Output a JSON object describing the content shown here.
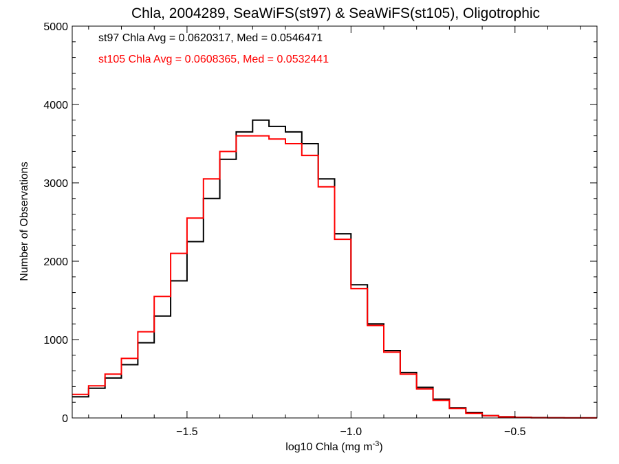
{
  "chart_data": {
    "type": "line",
    "style": "step-histogram",
    "title": "Chla, 2004289, SeaWiFS(st97) & SeaWiFS(st105), Oligotrophic",
    "xlabel": "log10 Chla (mg m",
    "xlabel_sup": "-3",
    "xlabel_end": ")",
    "ylabel": "Number of Observations",
    "xlim": [
      -1.85,
      -0.25
    ],
    "ylim": [
      0,
      5000
    ],
    "xticks": [
      -1.5,
      -1.0,
      -0.5
    ],
    "xtick_labels": [
      "−1.5",
      "−1.0",
      "−0.5"
    ],
    "yticks": [
      0,
      1000,
      2000,
      3000,
      4000,
      5000
    ],
    "ytick_labels": [
      "0",
      "1000",
      "2000",
      "3000",
      "4000",
      "5000"
    ],
    "grid": false,
    "annotations": [
      {
        "text": "st97 Chla Avg = 0.0620317, Med = 0.0546471",
        "color": "#000000"
      },
      {
        "text": "st105 Chla Avg = 0.0608365, Med = 0.0532441",
        "color": "#ff0000"
      }
    ],
    "series": [
      {
        "color": "#000000",
        "x": [
          -1.85,
          -1.8,
          -1.75,
          -1.7,
          -1.65,
          -1.6,
          -1.55,
          -1.5,
          -1.45,
          -1.4,
          -1.35,
          -1.3,
          -1.25,
          -1.2,
          -1.15,
          -1.1,
          -1.05,
          -1.0,
          -0.95,
          -0.9,
          -0.85,
          -0.8,
          -0.75,
          -0.7,
          -0.65,
          -0.6,
          -0.55,
          -0.5,
          -0.45,
          -0.4,
          -0.35,
          -0.3,
          -0.25
        ],
        "values": [
          270,
          380,
          510,
          680,
          960,
          1300,
          1750,
          2250,
          2800,
          3300,
          3650,
          3800,
          3720,
          3650,
          3500,
          3050,
          2350,
          1700,
          1200,
          860,
          580,
          390,
          240,
          130,
          70,
          30,
          15,
          8,
          4,
          2,
          1,
          1,
          0
        ]
      },
      {
        "color": "#ff0000",
        "x": [
          -1.85,
          -1.8,
          -1.75,
          -1.7,
          -1.65,
          -1.6,
          -1.55,
          -1.5,
          -1.45,
          -1.4,
          -1.35,
          -1.3,
          -1.25,
          -1.2,
          -1.15,
          -1.1,
          -1.05,
          -1.0,
          -0.95,
          -0.9,
          -0.85,
          -0.8,
          -0.75,
          -0.7,
          -0.65,
          -0.6,
          -0.55,
          -0.5,
          -0.45,
          -0.4,
          -0.35,
          -0.3,
          -0.25
        ],
        "values": [
          300,
          410,
          560,
          760,
          1100,
          1550,
          2100,
          2550,
          3050,
          3400,
          3600,
          3600,
          3560,
          3500,
          3350,
          2950,
          2280,
          1650,
          1180,
          840,
          560,
          370,
          225,
          120,
          60,
          28,
          13,
          7,
          3,
          2,
          1,
          1,
          0
        ]
      }
    ]
  }
}
